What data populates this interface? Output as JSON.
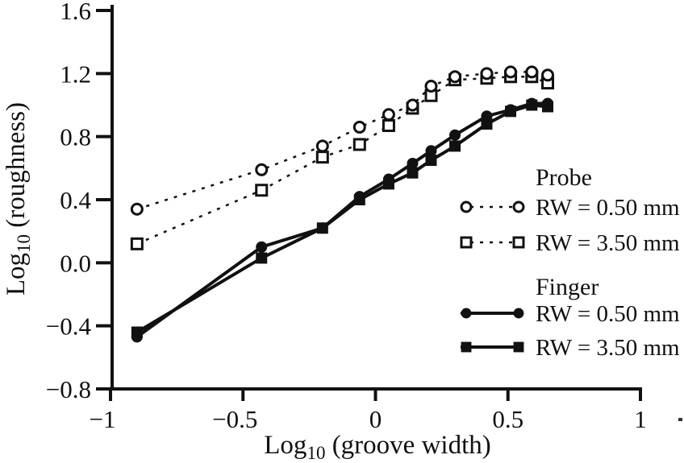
{
  "figure": {
    "x_axis": {
      "title_prefix": "Log",
      "title_sub": "10",
      "title_rest": " (groove width)",
      "tick_values": [
        -1,
        -0.5,
        0,
        0.5,
        1
      ],
      "tick_labels": [
        "−1",
        "−0.5",
        "0",
        "0.5",
        "1"
      ],
      "range": [
        -1,
        1
      ]
    },
    "y_axis": {
      "title_prefix": "Log",
      "title_sub": "10",
      "title_rest": " (roughness)",
      "tick_values": [
        1.6,
        1.2,
        0.8,
        0.4,
        0.0,
        -0.4,
        -0.8
      ],
      "tick_labels": [
        "1.6",
        "1.2",
        "0.8",
        "0.4",
        "0.0",
        "−0.4",
        "−0.8"
      ],
      "range": [
        -0.8,
        1.6
      ]
    },
    "legend": {
      "groups": [
        {
          "heading": "Probe",
          "items": [
            {
              "label": "RW = 0.50 mm",
              "marker": "open-circle",
              "line": "dashed"
            },
            {
              "label": "RW = 3.50 mm",
              "marker": "open-square",
              "line": "dashed"
            }
          ]
        },
        {
          "heading": "Finger",
          "items": [
            {
              "label": "RW = 0.50 mm",
              "marker": "filled-circle",
              "line": "solid"
            },
            {
              "label": "RW = 3.50 mm",
              "marker": "filled-square",
              "line": "solid"
            }
          ]
        }
      ]
    }
  },
  "chart_data": {
    "type": "line",
    "title": "",
    "xlabel": "Log10 (groove width)",
    "ylabel": "Log10 (roughness)",
    "xlim": [
      -1,
      1
    ],
    "ylim": [
      -0.8,
      1.6
    ],
    "grid": false,
    "legend_position": "inside-right",
    "x": [
      -0.9,
      -0.43,
      -0.2,
      -0.06,
      0.05,
      0.14,
      0.21,
      0.3,
      0.42,
      0.51,
      0.59,
      0.65
    ],
    "series": [
      {
        "name": "Probe RW = 0.50 mm",
        "marker": "open-circle",
        "line": "dashed",
        "values": [
          0.34,
          0.59,
          0.74,
          0.86,
          0.94,
          1.0,
          1.12,
          1.18,
          1.2,
          1.21,
          1.21,
          1.19
        ]
      },
      {
        "name": "Probe RW = 3.50 mm",
        "marker": "open-square",
        "line": "dashed",
        "values": [
          0.12,
          0.46,
          0.67,
          0.75,
          0.87,
          0.98,
          1.06,
          1.16,
          1.17,
          1.18,
          1.18,
          1.14
        ]
      },
      {
        "name": "Finger RW = 0.50 mm",
        "marker": "filled-circle",
        "line": "solid",
        "values": [
          -0.47,
          0.1,
          0.22,
          0.42,
          0.53,
          0.63,
          0.71,
          0.81,
          0.93,
          0.97,
          1.01,
          1.01
        ]
      },
      {
        "name": "Finger RW = 3.50 mm",
        "marker": "filled-square",
        "line": "solid",
        "values": [
          -0.44,
          0.03,
          0.22,
          0.4,
          0.5,
          0.57,
          0.65,
          0.74,
          0.88,
          0.96,
          1.0,
          0.99
        ]
      }
    ],
    "colors": {
      "ink": "#111111",
      "background": "#ffffff"
    }
  }
}
